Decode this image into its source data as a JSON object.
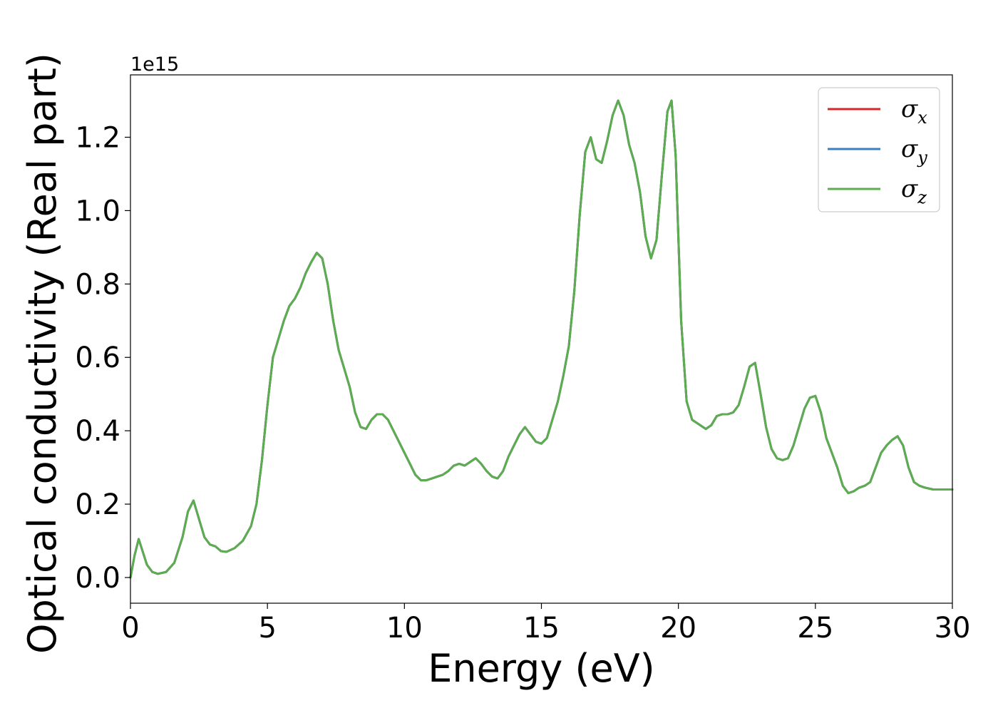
{
  "chart_data": {
    "type": "line",
    "title": "",
    "xlabel": "Energy (eV)",
    "ylabel": "Optical conductivity (Real part)",
    "y_offset_label": "1e15",
    "xlim": [
      0,
      30
    ],
    "ylim": [
      -0.07,
      1.37
    ],
    "x_ticks": [
      0,
      5,
      10,
      15,
      20,
      25,
      30
    ],
    "x_tick_labels": [
      "0",
      "5",
      "10",
      "15",
      "20",
      "25",
      "30"
    ],
    "y_ticks": [
      0.0,
      0.2,
      0.4,
      0.6,
      0.8,
      1.0,
      1.2
    ],
    "y_tick_labels": [
      "0.0",
      "0.2",
      "0.4",
      "0.6",
      "0.8",
      "1.0",
      "1.2"
    ],
    "grid": false,
    "legend_position": "top-right",
    "x": [
      0,
      0.15,
      0.3,
      0.45,
      0.6,
      0.8,
      1.0,
      1.3,
      1.6,
      1.9,
      2.1,
      2.3,
      2.5,
      2.7,
      2.9,
      3.1,
      3.3,
      3.5,
      3.8,
      4.1,
      4.4,
      4.6,
      4.8,
      5.0,
      5.2,
      5.4,
      5.6,
      5.8,
      6.0,
      6.2,
      6.4,
      6.6,
      6.8,
      7.0,
      7.2,
      7.4,
      7.6,
      7.8,
      8.0,
      8.2,
      8.4,
      8.6,
      8.8,
      9.0,
      9.2,
      9.4,
      9.6,
      9.8,
      10.0,
      10.2,
      10.4,
      10.6,
      10.8,
      11.0,
      11.2,
      11.4,
      11.6,
      11.8,
      12.0,
      12.2,
      12.4,
      12.6,
      12.8,
      13.0,
      13.2,
      13.4,
      13.6,
      13.8,
      14.0,
      14.2,
      14.4,
      14.6,
      14.8,
      15.0,
      15.2,
      15.4,
      15.6,
      15.8,
      16.0,
      16.2,
      16.4,
      16.6,
      16.8,
      17.0,
      17.2,
      17.4,
      17.6,
      17.8,
      18.0,
      18.2,
      18.4,
      18.6,
      18.8,
      19.0,
      19.2,
      19.4,
      19.6,
      19.75,
      19.9,
      20.1,
      20.3,
      20.5,
      20.7,
      21.0,
      21.2,
      21.4,
      21.6,
      21.8,
      22.0,
      22.2,
      22.4,
      22.6,
      22.8,
      23.0,
      23.2,
      23.4,
      23.6,
      23.8,
      24.0,
      24.2,
      24.4,
      24.6,
      24.8,
      25.0,
      25.2,
      25.4,
      25.6,
      25.8,
      26.0,
      26.2,
      26.4,
      26.6,
      26.8,
      27.0,
      27.2,
      27.4,
      27.6,
      27.8,
      28.0,
      28.2,
      28.4,
      28.6,
      28.8,
      29.0,
      29.3,
      29.6,
      30.0
    ],
    "series": [
      {
        "name": "σx",
        "name_symbol": "σ",
        "name_sub": "x",
        "color": "#d62728",
        "values": [
          0.0,
          0.06,
          0.105,
          0.07,
          0.035,
          0.015,
          0.01,
          0.015,
          0.04,
          0.11,
          0.18,
          0.21,
          0.16,
          0.11,
          0.09,
          0.085,
          0.072,
          0.07,
          0.08,
          0.1,
          0.14,
          0.2,
          0.32,
          0.47,
          0.6,
          0.65,
          0.7,
          0.74,
          0.76,
          0.79,
          0.83,
          0.86,
          0.885,
          0.87,
          0.8,
          0.7,
          0.62,
          0.57,
          0.52,
          0.45,
          0.41,
          0.405,
          0.43,
          0.445,
          0.445,
          0.43,
          0.4,
          0.37,
          0.34,
          0.31,
          0.28,
          0.265,
          0.265,
          0.27,
          0.275,
          0.28,
          0.29,
          0.305,
          0.31,
          0.305,
          0.315,
          0.325,
          0.31,
          0.29,
          0.275,
          0.27,
          0.29,
          0.33,
          0.36,
          0.39,
          0.41,
          0.39,
          0.37,
          0.365,
          0.38,
          0.43,
          0.48,
          0.55,
          0.63,
          0.78,
          0.99,
          1.16,
          1.2,
          1.14,
          1.13,
          1.19,
          1.26,
          1.3,
          1.26,
          1.18,
          1.13,
          1.05,
          0.93,
          0.87,
          0.92,
          1.1,
          1.27,
          1.3,
          1.15,
          0.7,
          0.48,
          0.43,
          0.42,
          0.405,
          0.415,
          0.44,
          0.445,
          0.445,
          0.45,
          0.47,
          0.52,
          0.575,
          0.585,
          0.5,
          0.41,
          0.35,
          0.325,
          0.32,
          0.325,
          0.36,
          0.41,
          0.46,
          0.49,
          0.495,
          0.45,
          0.38,
          0.34,
          0.3,
          0.25,
          0.23,
          0.235,
          0.245,
          0.25,
          0.26,
          0.3,
          0.34,
          0.36,
          0.375,
          0.385,
          0.36,
          0.3,
          0.26,
          0.25,
          0.245,
          0.24,
          0.24,
          0.24
        ]
      },
      {
        "name": "σy",
        "name_symbol": "σ",
        "name_sub": "y",
        "color": "#3a7fbf",
        "values": [
          0.0,
          0.06,
          0.105,
          0.07,
          0.035,
          0.015,
          0.01,
          0.015,
          0.04,
          0.11,
          0.18,
          0.21,
          0.16,
          0.11,
          0.09,
          0.085,
          0.072,
          0.07,
          0.08,
          0.1,
          0.14,
          0.2,
          0.32,
          0.47,
          0.6,
          0.65,
          0.7,
          0.74,
          0.76,
          0.79,
          0.83,
          0.86,
          0.885,
          0.87,
          0.8,
          0.7,
          0.62,
          0.57,
          0.52,
          0.45,
          0.41,
          0.405,
          0.43,
          0.445,
          0.445,
          0.43,
          0.4,
          0.37,
          0.34,
          0.31,
          0.28,
          0.265,
          0.265,
          0.27,
          0.275,
          0.28,
          0.29,
          0.305,
          0.31,
          0.305,
          0.315,
          0.325,
          0.31,
          0.29,
          0.275,
          0.27,
          0.29,
          0.33,
          0.36,
          0.39,
          0.41,
          0.39,
          0.37,
          0.365,
          0.38,
          0.43,
          0.48,
          0.55,
          0.63,
          0.78,
          0.99,
          1.16,
          1.2,
          1.14,
          1.13,
          1.19,
          1.26,
          1.3,
          1.26,
          1.18,
          1.13,
          1.05,
          0.93,
          0.87,
          0.92,
          1.1,
          1.27,
          1.3,
          1.15,
          0.7,
          0.48,
          0.43,
          0.42,
          0.405,
          0.415,
          0.44,
          0.445,
          0.445,
          0.45,
          0.47,
          0.52,
          0.575,
          0.585,
          0.5,
          0.41,
          0.35,
          0.325,
          0.32,
          0.325,
          0.36,
          0.41,
          0.46,
          0.49,
          0.495,
          0.45,
          0.38,
          0.34,
          0.3,
          0.25,
          0.23,
          0.235,
          0.245,
          0.25,
          0.26,
          0.3,
          0.34,
          0.36,
          0.375,
          0.385,
          0.36,
          0.3,
          0.26,
          0.25,
          0.245,
          0.24,
          0.24,
          0.24
        ]
      },
      {
        "name": "σz",
        "name_symbol": "σ",
        "name_sub": "z",
        "color": "#5cad4f",
        "values": [
          0.0,
          0.06,
          0.105,
          0.07,
          0.035,
          0.015,
          0.01,
          0.015,
          0.04,
          0.11,
          0.18,
          0.21,
          0.16,
          0.11,
          0.09,
          0.085,
          0.072,
          0.07,
          0.08,
          0.1,
          0.14,
          0.2,
          0.32,
          0.47,
          0.6,
          0.65,
          0.7,
          0.74,
          0.76,
          0.79,
          0.83,
          0.86,
          0.885,
          0.87,
          0.8,
          0.7,
          0.62,
          0.57,
          0.52,
          0.45,
          0.41,
          0.405,
          0.43,
          0.445,
          0.445,
          0.43,
          0.4,
          0.37,
          0.34,
          0.31,
          0.28,
          0.265,
          0.265,
          0.27,
          0.275,
          0.28,
          0.29,
          0.305,
          0.31,
          0.305,
          0.315,
          0.325,
          0.31,
          0.29,
          0.275,
          0.27,
          0.29,
          0.33,
          0.36,
          0.39,
          0.41,
          0.39,
          0.37,
          0.365,
          0.38,
          0.43,
          0.48,
          0.55,
          0.63,
          0.78,
          0.99,
          1.16,
          1.2,
          1.14,
          1.13,
          1.19,
          1.26,
          1.3,
          1.26,
          1.18,
          1.13,
          1.05,
          0.93,
          0.87,
          0.92,
          1.1,
          1.27,
          1.3,
          1.15,
          0.7,
          0.48,
          0.43,
          0.42,
          0.405,
          0.415,
          0.44,
          0.445,
          0.445,
          0.45,
          0.47,
          0.52,
          0.575,
          0.585,
          0.5,
          0.41,
          0.35,
          0.325,
          0.32,
          0.325,
          0.36,
          0.41,
          0.46,
          0.49,
          0.495,
          0.45,
          0.38,
          0.34,
          0.3,
          0.25,
          0.23,
          0.235,
          0.245,
          0.25,
          0.26,
          0.3,
          0.34,
          0.36,
          0.375,
          0.385,
          0.36,
          0.3,
          0.26,
          0.25,
          0.245,
          0.24,
          0.24,
          0.24
        ]
      }
    ]
  }
}
